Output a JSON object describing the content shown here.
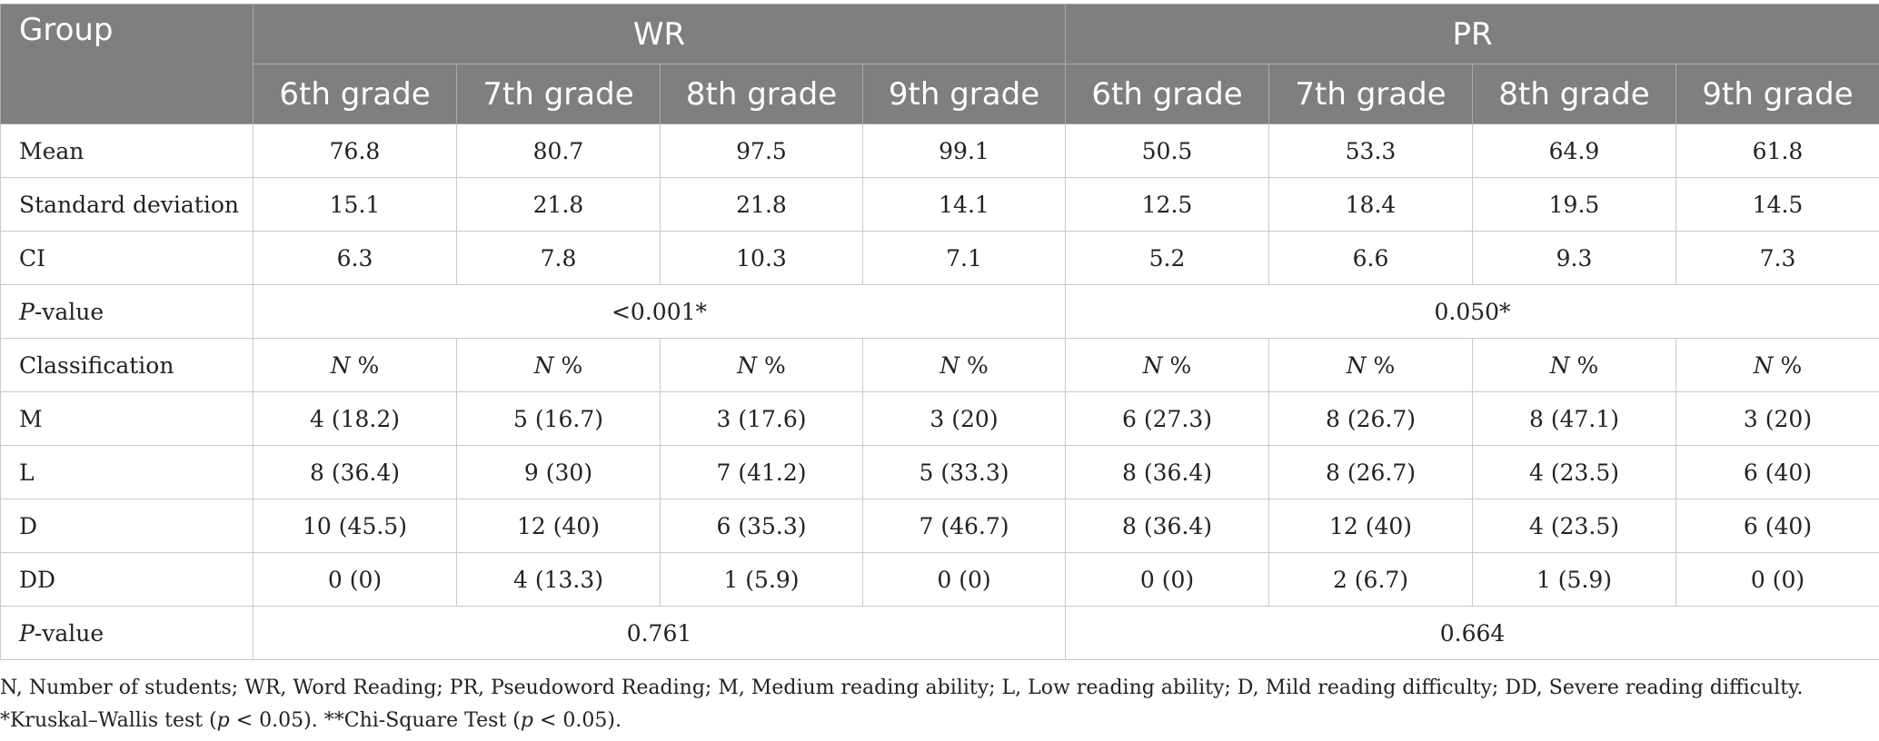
{
  "header": {
    "group_label": "Group",
    "wr_label": "WR",
    "pr_label": "PR",
    "grades": [
      "6th grade",
      "7th grade",
      "8th grade",
      "9th grade",
      "6th grade",
      "7th grade",
      "8th grade",
      "9th grade"
    ]
  },
  "rows": {
    "mean": {
      "label": "Mean",
      "values": [
        "76.8",
        "80.7",
        "97.5",
        "99.1",
        "50.5",
        "53.3",
        "64.9",
        "61.8"
      ]
    },
    "sd": {
      "label": "Standard deviation",
      "values": [
        "15.1",
        "21.8",
        "21.8",
        "14.1",
        "12.5",
        "18.4",
        "19.5",
        "14.5"
      ]
    },
    "ci": {
      "label": "CI",
      "values": [
        "6.3",
        "7.8",
        "10.3",
        "7.1",
        "5.2",
        "6.6",
        "9.3",
        "7.3"
      ]
    },
    "pvalue1": {
      "label_italic": "P",
      "label_rest": "-value",
      "wr": "<0.001*",
      "pr": "0.050*"
    },
    "classification": {
      "label": "Classification",
      "n_italic": "N",
      "pct": " %"
    },
    "m": {
      "label": "M",
      "values": [
        "4 (18.2)",
        "5 (16.7)",
        "3 (17.6)",
        "3 (20)",
        "6 (27.3)",
        "8 (26.7)",
        "8 (47.1)",
        "3 (20)"
      ]
    },
    "l": {
      "label": "L",
      "values": [
        "8 (36.4)",
        "9 (30)",
        "7 (41.2)",
        "5 (33.3)",
        "8 (36.4)",
        "8 (26.7)",
        "4 (23.5)",
        "6 (40)"
      ]
    },
    "d": {
      "label": "D",
      "values": [
        "10 (45.5)",
        "12 (40)",
        "6 (35.3)",
        "7 (46.7)",
        "8 (36.4)",
        "12 (40)",
        "4 (23.5)",
        "6 (40)"
      ]
    },
    "dd": {
      "label": "DD",
      "values": [
        "0 (0)",
        "4 (13.3)",
        "1 (5.9)",
        "0 (0)",
        "0 (0)",
        "2 (6.7)",
        "1 (5.9)",
        "0 (0)"
      ]
    },
    "pvalue2": {
      "label_italic": "P",
      "label_rest": "-value",
      "wr": "0.761",
      "pr": "0.664"
    }
  },
  "notes": {
    "line1": "N, Number of students; WR, Word Reading; PR, Pseudoword Reading; M, Medium reading ability; L, Low reading ability; D, Mild reading difficulty; DD, Severe reading difficulty.",
    "line2_a": "*Kruskal–Wallis test (",
    "p_italic": "p",
    "line2_b": " < 0.05). **Chi-Square Test (",
    "line2_c": " < 0.05)."
  }
}
